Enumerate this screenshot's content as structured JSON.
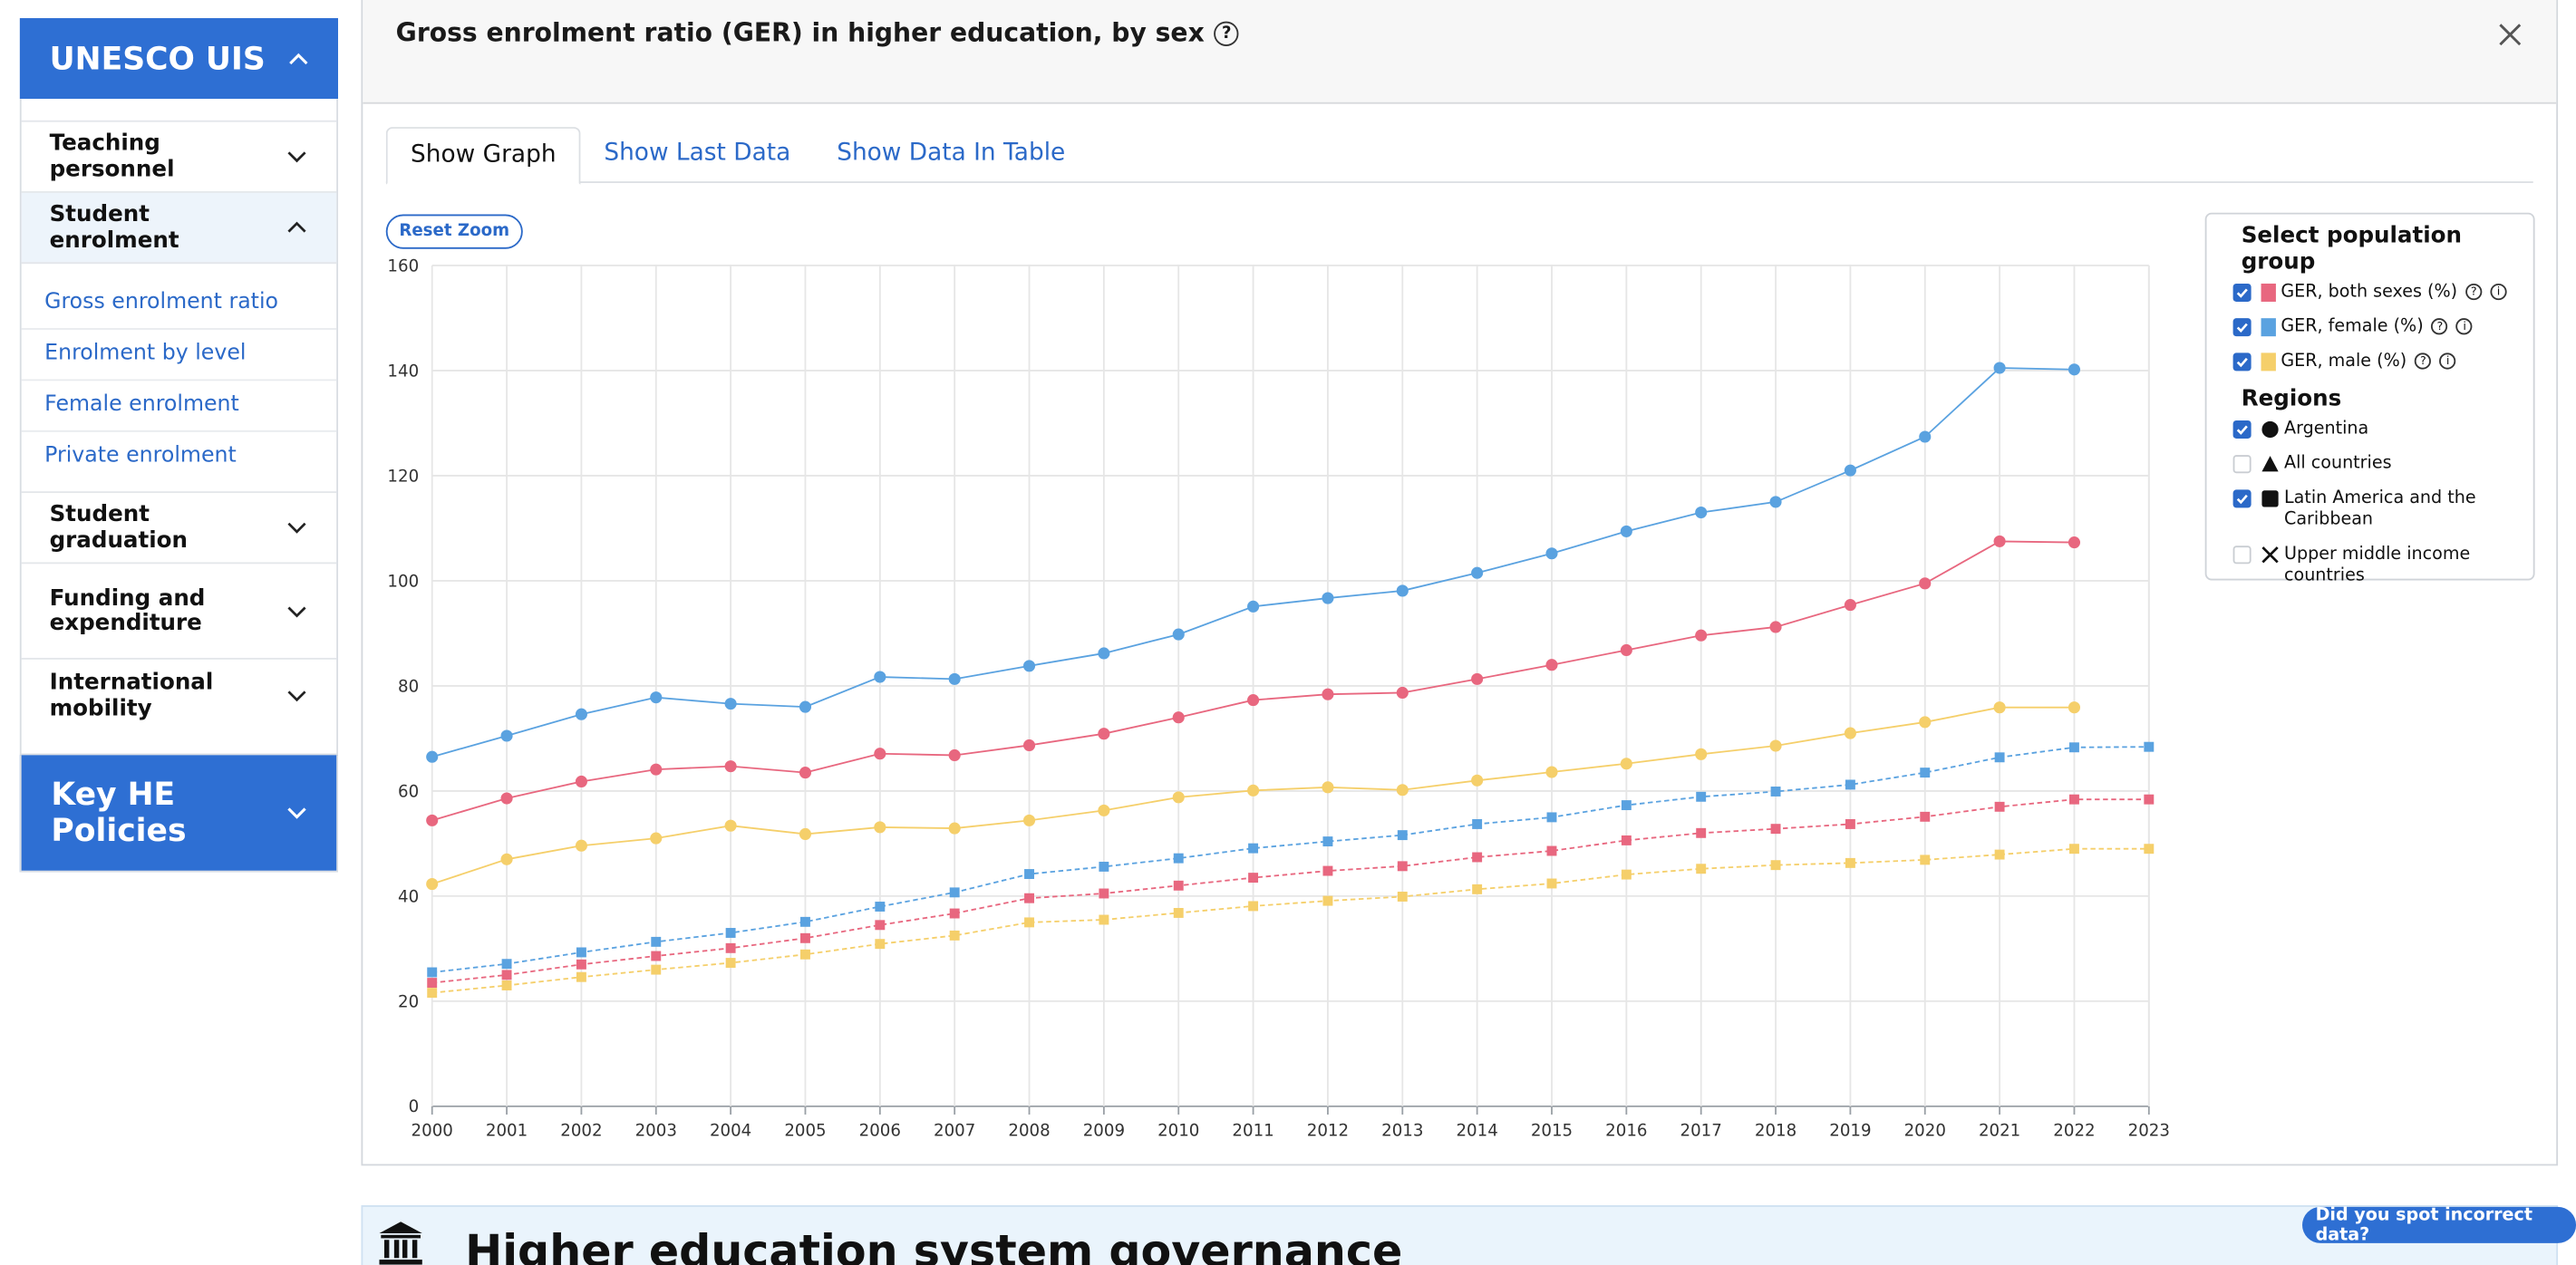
{
  "sidebar": {
    "top_label": "UNESCO UIS",
    "items": [
      {
        "label": "Teaching personnel"
      },
      {
        "label": "Student enrolment"
      },
      {
        "label": "Student graduation"
      },
      {
        "label": "Funding and expenditure"
      },
      {
        "label": "International mobility"
      }
    ],
    "subitems": [
      "Gross enrolment ratio",
      "Enrolment by level",
      "Female enrolment",
      "Private enrolment"
    ],
    "bottom_label": "Key HE Policies"
  },
  "panel": {
    "title": "Gross enrolment ratio (GER) in higher education, by sex",
    "tabs": [
      "Show Graph",
      "Show Last Data",
      "Show Data In Table"
    ],
    "reset_zoom": "Reset Zoom"
  },
  "legend": {
    "title": "Select population group",
    "groups": [
      {
        "label": "GER, both sexes (%)",
        "color": "#e8677f",
        "checked": true
      },
      {
        "label": "GER, female (%)",
        "color": "#5aa2e0",
        "checked": true
      },
      {
        "label": "GER, male (%)",
        "color": "#f5cf6a",
        "checked": true
      }
    ],
    "regions_title": "Regions",
    "regions": [
      {
        "label": "Argentina",
        "shape": "circle",
        "checked": true
      },
      {
        "label": "All countries",
        "shape": "triangle",
        "checked": false
      },
      {
        "label": "Latin America and the Caribbean",
        "shape": "square",
        "checked": true
      },
      {
        "label": "Upper middle income countries",
        "shape": "cross",
        "checked": false
      }
    ]
  },
  "banner": {
    "title": "Higher education system governance",
    "icon": "institution-icon"
  },
  "report_button": "Did you spot incorrect data?",
  "chart_data": {
    "type": "line",
    "x": [
      2000,
      2001,
      2002,
      2003,
      2004,
      2005,
      2006,
      2007,
      2008,
      2009,
      2010,
      2011,
      2012,
      2013,
      2014,
      2015,
      2016,
      2017,
      2018,
      2019,
      2020,
      2021,
      2022,
      2023
    ],
    "ylim": [
      0,
      160
    ],
    "yticks": [
      0,
      20,
      40,
      60,
      80,
      100,
      120,
      140,
      160
    ],
    "grid": true,
    "legend_position": "right",
    "series": [
      {
        "name": "GER, female (%) — Argentina",
        "color": "#5aa2e0",
        "marker": "circle",
        "dash": false,
        "values": [
          66.5,
          70.5,
          74.6,
          77.8,
          76.6,
          76.0,
          81.7,
          81.3,
          83.8,
          86.2,
          89.8,
          95.1,
          96.7,
          98.1,
          101.5,
          105.2,
          109.4,
          113.0,
          115.0,
          121.0,
          127.4,
          140.5,
          140.2,
          null
        ]
      },
      {
        "name": "GER, both sexes (%) — Argentina",
        "color": "#e8677f",
        "marker": "circle",
        "dash": false,
        "values": [
          54.4,
          58.6,
          61.8,
          64.1,
          64.7,
          63.5,
          67.1,
          66.8,
          68.7,
          70.9,
          74.0,
          77.3,
          78.4,
          78.7,
          81.3,
          84.0,
          86.8,
          89.6,
          91.2,
          95.4,
          99.5,
          107.5,
          107.3,
          null
        ]
      },
      {
        "name": "GER, male (%) — Argentina",
        "color": "#f5cf6a",
        "marker": "circle",
        "dash": false,
        "values": [
          42.3,
          47.0,
          49.6,
          51.0,
          53.4,
          51.8,
          53.1,
          52.9,
          54.4,
          56.3,
          58.8,
          60.1,
          60.7,
          60.2,
          62.0,
          63.6,
          65.2,
          67.0,
          68.6,
          71.0,
          73.1,
          75.9,
          75.9,
          null
        ]
      },
      {
        "name": "GER, female (%) — Latin America and the Caribbean",
        "color": "#5aa2e0",
        "marker": "square",
        "dash": true,
        "values": [
          25.5,
          27.1,
          29.3,
          31.3,
          33.0,
          35.1,
          38.0,
          40.7,
          44.2,
          45.6,
          47.2,
          49.1,
          50.4,
          51.6,
          53.7,
          55.0,
          57.3,
          58.9,
          59.9,
          61.2,
          63.5,
          66.4,
          68.3,
          68.4
        ]
      },
      {
        "name": "GER, both sexes (%) — Latin America and the Caribbean",
        "color": "#e8677f",
        "marker": "square",
        "dash": true,
        "values": [
          23.5,
          25.0,
          27.0,
          28.6,
          30.1,
          32.0,
          34.5,
          36.7,
          39.6,
          40.5,
          42.0,
          43.5,
          44.8,
          45.7,
          47.4,
          48.6,
          50.6,
          52.0,
          52.8,
          53.7,
          55.1,
          57.0,
          58.4,
          58.4
        ]
      },
      {
        "name": "GER, male (%) — Latin America and the Caribbean",
        "color": "#f5cf6a",
        "marker": "square",
        "dash": true,
        "values": [
          21.6,
          23.0,
          24.6,
          26.0,
          27.3,
          28.9,
          30.9,
          32.5,
          35.0,
          35.5,
          36.8,
          38.1,
          39.1,
          39.9,
          41.3,
          42.4,
          44.1,
          45.2,
          45.9,
          46.3,
          46.9,
          47.9,
          49.0,
          49.0
        ]
      }
    ]
  }
}
